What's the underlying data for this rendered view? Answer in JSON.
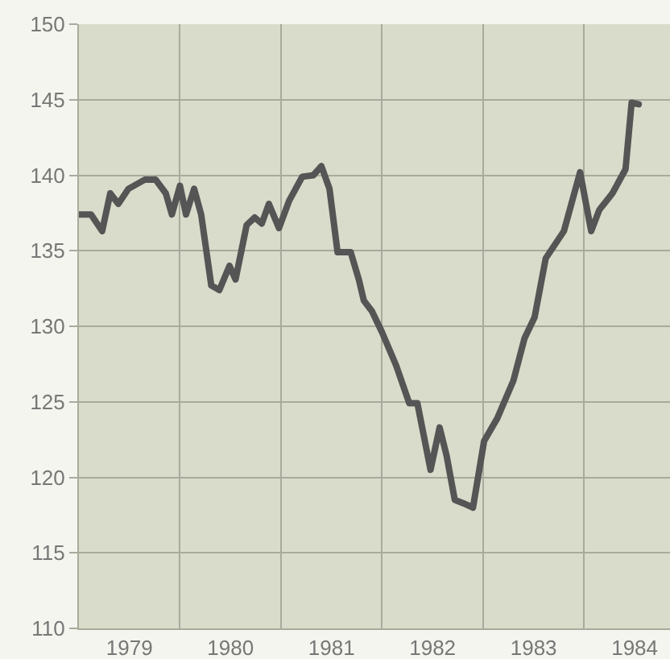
{
  "chart_data": {
    "type": "line",
    "x": [
      1979.0,
      1979.12,
      1979.23,
      1979.31,
      1979.39,
      1979.49,
      1979.65,
      1979.76,
      1979.86,
      1979.92,
      1980.0,
      1980.06,
      1980.14,
      1980.21,
      1980.31,
      1980.39,
      1980.49,
      1980.55,
      1980.66,
      1980.74,
      1980.81,
      1980.88,
      1980.98,
      1981.08,
      1981.21,
      1981.32,
      1981.4,
      1981.48,
      1981.56,
      1981.69,
      1981.77,
      1981.82,
      1981.9,
      1982.0,
      1982.14,
      1982.27,
      1982.35,
      1982.48,
      1982.57,
      1982.64,
      1982.72,
      1982.8,
      1982.9,
      1983.01,
      1983.14,
      1983.3,
      1983.41,
      1983.51,
      1983.62,
      1983.8,
      1983.96,
      1984.07,
      1984.15,
      1984.28,
      1984.41,
      1984.47,
      1984.54
    ],
    "series": [
      {
        "color": "#555555",
        "values": [
          137.4,
          137.4,
          136.3,
          138.8,
          138.1,
          139.1,
          139.7,
          139.7,
          138.8,
          137.4,
          139.3,
          137.4,
          139.1,
          137.4,
          132.7,
          132.4,
          134.0,
          133.1,
          136.7,
          137.2,
          136.8,
          138.1,
          136.5,
          138.3,
          139.9,
          140.0,
          140.6,
          139.1,
          134.9,
          134.9,
          133.1,
          131.7,
          131.0,
          129.6,
          127.4,
          124.9,
          124.9,
          120.5,
          123.3,
          121.4,
          118.5,
          118.3,
          118.0,
          122.4,
          123.9,
          126.4,
          129.2,
          130.6,
          134.5,
          136.3,
          140.2,
          136.3,
          137.7,
          138.8,
          140.4,
          144.8,
          144.7
        ]
      }
    ],
    "xlim": [
      1979,
      1984.85
    ],
    "xticks": [
      {
        "value": 1979.5,
        "label": "1979"
      },
      {
        "value": 1980.5,
        "label": "1980"
      },
      {
        "value": 1981.5,
        "label": "1981"
      },
      {
        "value": 1982.5,
        "label": "1982"
      },
      {
        "value": 1983.5,
        "label": "1983"
      },
      {
        "value": 1984.5,
        "label": "1984"
      },
      {
        "value": 1980,
        "label": null
      },
      {
        "value": 1981,
        "label": null
      },
      {
        "value": 1982,
        "label": null
      },
      {
        "value": 1983,
        "label": null
      },
      {
        "value": 1984,
        "label": null
      }
    ],
    "ylim": [
      110,
      150
    ],
    "yticks": [
      110,
      115,
      120,
      125,
      130,
      135,
      140,
      145,
      150
    ],
    "grid": true,
    "marker": "none",
    "line_style": "solid"
  }
}
